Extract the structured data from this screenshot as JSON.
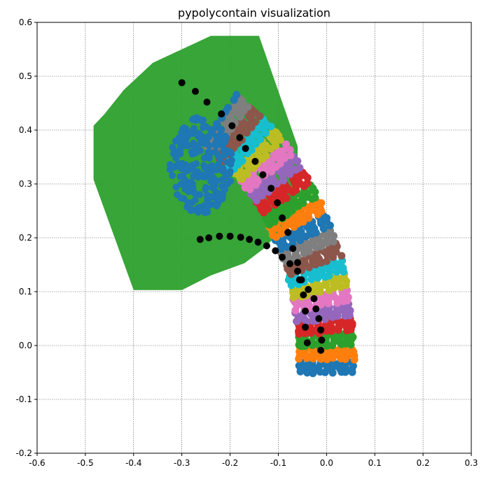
{
  "chart_data": {
    "type": "scatter",
    "title": "pypolycontain visualization",
    "xlabel": "",
    "ylabel": "",
    "xlim": [
      -0.6,
      0.3
    ],
    "ylim": [
      -0.2,
      0.6
    ],
    "x_ticks": [
      "-0.6",
      "-0.5",
      "-0.4",
      "-0.3",
      "-0.2",
      "-0.1",
      "0.0",
      "0.1",
      "0.2",
      "0.3"
    ],
    "y_ticks": [
      "-0.2",
      "-0.1",
      "0.0",
      "0.1",
      "0.2",
      "0.3",
      "0.4",
      "0.5",
      "0.6"
    ],
    "grid": true,
    "grid_style": "dotted",
    "green_polygon": {
      "color": "#2ca02c",
      "vertices": [
        [
          -0.4,
          0.103
        ],
        [
          -0.3,
          0.103
        ],
        [
          -0.24,
          0.13
        ],
        [
          -0.17,
          0.153
        ],
        [
          -0.13,
          0.18
        ],
        [
          -0.06,
          0.245
        ],
        [
          -0.06,
          0.37
        ],
        [
          -0.14,
          0.575
        ],
        [
          -0.24,
          0.575
        ],
        [
          -0.36,
          0.525
        ],
        [
          -0.42,
          0.475
        ],
        [
          -0.46,
          0.43
        ],
        [
          -0.483,
          0.408
        ],
        [
          -0.483,
          0.308
        ]
      ]
    },
    "band_colors": [
      "#1f77b4",
      "#ff7f0e",
      "#2ca02c",
      "#d62728",
      "#9467bd",
      "#e377c2",
      "#bcbd22",
      "#17becf",
      "#8c564b",
      "#7f7f7f"
    ],
    "blue_blob": {
      "color": "#1f77b4",
      "center": [
        -0.26,
        0.335
      ],
      "radius_x": 0.065,
      "radius_y": 0.09
    },
    "centerline": [
      [
        0.0,
        -0.05
      ],
      [
        0.0,
        0.0
      ],
      [
        -0.004,
        0.05
      ],
      [
        -0.012,
        0.1
      ],
      [
        -0.025,
        0.15
      ],
      [
        -0.045,
        0.2
      ],
      [
        -0.07,
        0.25
      ],
      [
        -0.1,
        0.3
      ],
      [
        -0.135,
        0.345
      ],
      [
        -0.175,
        0.385
      ],
      [
        -0.22,
        0.42
      ]
    ],
    "black_points_color": "#000000",
    "black_points": [
      [
        -0.3,
        0.488
      ],
      [
        -0.272,
        0.472
      ],
      [
        -0.248,
        0.452
      ],
      [
        -0.218,
        0.43
      ],
      [
        -0.196,
        0.408
      ],
      [
        -0.18,
        0.386
      ],
      [
        -0.168,
        0.366
      ],
      [
        -0.148,
        0.342
      ],
      [
        -0.132,
        0.317
      ],
      [
        -0.115,
        0.292
      ],
      [
        -0.102,
        0.265
      ],
      [
        -0.092,
        0.237
      ],
      [
        -0.08,
        0.21
      ],
      [
        -0.262,
        0.197
      ],
      [
        -0.244,
        0.2
      ],
      [
        -0.222,
        0.203
      ],
      [
        -0.2,
        0.203
      ],
      [
        -0.178,
        0.201
      ],
      [
        -0.16,
        0.197
      ],
      [
        -0.142,
        0.192
      ],
      [
        -0.124,
        0.185
      ],
      [
        -0.106,
        0.176
      ],
      [
        -0.092,
        0.164
      ],
      [
        -0.07,
        0.18
      ],
      [
        -0.076,
        0.152
      ],
      [
        -0.06,
        0.154
      ],
      [
        -0.06,
        0.138
      ],
      [
        -0.056,
        0.122
      ],
      [
        -0.052,
        0.122
      ],
      [
        -0.038,
        0.104
      ],
      [
        -0.026,
        0.087
      ],
      [
        -0.048,
        0.094
      ],
      [
        -0.044,
        0.064
      ],
      [
        -0.022,
        0.068
      ],
      [
        -0.016,
        0.05
      ],
      [
        -0.044,
        0.034
      ],
      [
        -0.012,
        0.029
      ],
      [
        -0.01,
        0.01
      ],
      [
        -0.04,
        0.005
      ],
      [
        -0.012,
        -0.009
      ]
    ]
  }
}
